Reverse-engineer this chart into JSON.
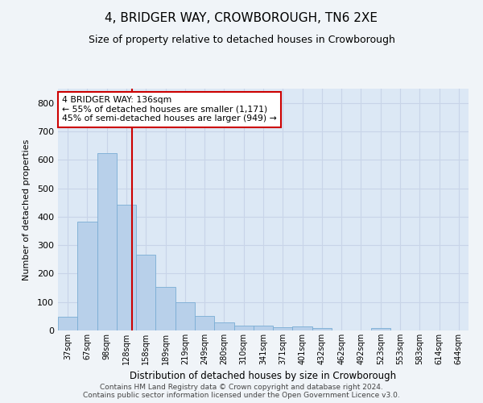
{
  "title": "4, BRIDGER WAY, CROWBOROUGH, TN6 2XE",
  "subtitle": "Size of property relative to detached houses in Crowborough",
  "xlabel": "Distribution of detached houses by size in Crowborough",
  "ylabel": "Number of detached properties",
  "categories": [
    "37sqm",
    "67sqm",
    "98sqm",
    "128sqm",
    "158sqm",
    "189sqm",
    "219sqm",
    "249sqm",
    "280sqm",
    "310sqm",
    "341sqm",
    "371sqm",
    "401sqm",
    "432sqm",
    "462sqm",
    "492sqm",
    "523sqm",
    "553sqm",
    "583sqm",
    "614sqm",
    "644sqm"
  ],
  "values": [
    47,
    383,
    623,
    443,
    267,
    153,
    98,
    52,
    29,
    18,
    16,
    11,
    15,
    8,
    0,
    0,
    8,
    0,
    0,
    0,
    0
  ],
  "bar_color": "#b8d0ea",
  "bar_edge_color": "#7aadd4",
  "marker_label": "4 BRIDGER WAY: 136sqm",
  "annotation_line1": "← 55% of detached houses are smaller (1,171)",
  "annotation_line2": "45% of semi-detached houses are larger (949) →",
  "annotation_box_color": "#ffffff",
  "annotation_box_edge": "#cc0000",
  "vline_color": "#cc0000",
  "vline_x": 3.27,
  "ylim": [
    0,
    850
  ],
  "yticks": [
    0,
    100,
    200,
    300,
    400,
    500,
    600,
    700,
    800
  ],
  "grid_color": "#c8d4e8",
  "bg_color": "#dce8f5",
  "fig_bg_color": "#f0f4f8",
  "footer_line1": "Contains HM Land Registry data © Crown copyright and database right 2024.",
  "footer_line2": "Contains public sector information licensed under the Open Government Licence v3.0."
}
